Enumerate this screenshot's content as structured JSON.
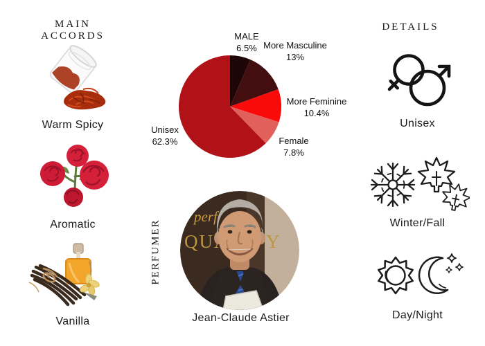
{
  "headings": {
    "main_accords": "MAIN ACCORDS",
    "details": "DETAILS",
    "perfumer": "PERFUMER"
  },
  "main_accords": {
    "items": [
      {
        "label": "Warm Spicy",
        "icon": "saffron-jar-photo"
      },
      {
        "label": "Aromatic",
        "icon": "red-roses-photo"
      },
      {
        "label": "Vanilla",
        "icon": "vanilla-pods-and-oil-photo"
      }
    ]
  },
  "chart_data": {
    "type": "pie",
    "title": "",
    "categories": [
      "MALE",
      "More Masculine",
      "More Feminine",
      "Female",
      "Unisex"
    ],
    "values": [
      6.5,
      13,
      10.4,
      7.8,
      62.3
    ],
    "colors": [
      "#1e0506",
      "#420e0f",
      "#f90b0b",
      "#e2605c",
      "#b11218"
    ],
    "start_angle_deg": 0,
    "direction": "clockwise",
    "legend_position": "outside-labels",
    "labels": [
      {
        "name": "MALE",
        "pct": "6.5%"
      },
      {
        "name": "More Masculine",
        "pct": "13%"
      },
      {
        "name": "More Feminine",
        "pct": "10.4%"
      },
      {
        "name": "Female",
        "pct": "7.8%"
      },
      {
        "name": "Unisex",
        "pct": "62.3%"
      }
    ]
  },
  "perfumer": {
    "name": "Jean-Claude Astier",
    "photo": "circular portrait of smiling gray-haired man in dark suit, blue shirt and tie",
    "photo_background_text_1": "perf",
    "photo_background_text_2": "QUA",
    "photo_background_text_3": "Y"
  },
  "details": {
    "items": [
      {
        "label": "Unisex",
        "icons": [
          "female-symbol",
          "male-symbol"
        ]
      },
      {
        "label": "Winter/Fall",
        "icons": [
          "snowflake",
          "maple-leaf",
          "maple-leaf"
        ]
      },
      {
        "label": "Day/Night",
        "icons": [
          "sun",
          "crescent-moon",
          "stars"
        ]
      }
    ]
  }
}
